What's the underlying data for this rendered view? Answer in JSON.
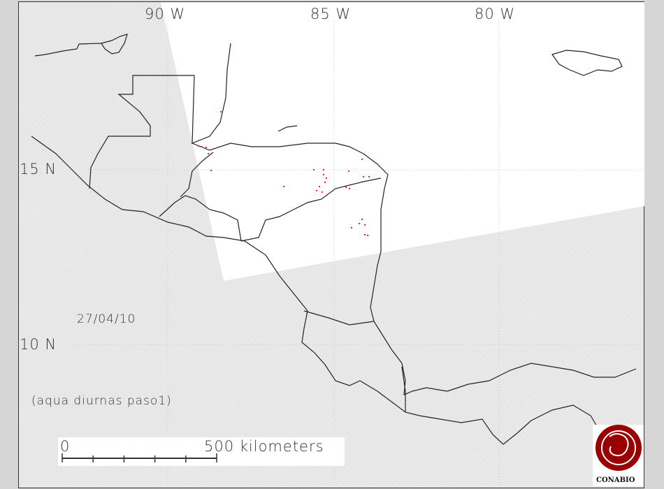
{
  "map": {
    "longitude_labels": [
      "90 W",
      "85 W",
      "80 W"
    ],
    "latitude_labels": [
      "15 N",
      "10 N"
    ],
    "date": "27/04/10",
    "subtitle": "(aqua diurnas paso1)",
    "scale_bar": {
      "start_label": "0",
      "end_label": "500 kilometers"
    },
    "logo": {
      "text": "CONABIO",
      "color": "#990000"
    },
    "colors": {
      "background": "#d6d6d6",
      "out_of_swath": "#ededed",
      "swath": "#ffffff",
      "coastline": "#222222",
      "fire_points": "#ff2020"
    }
  }
}
